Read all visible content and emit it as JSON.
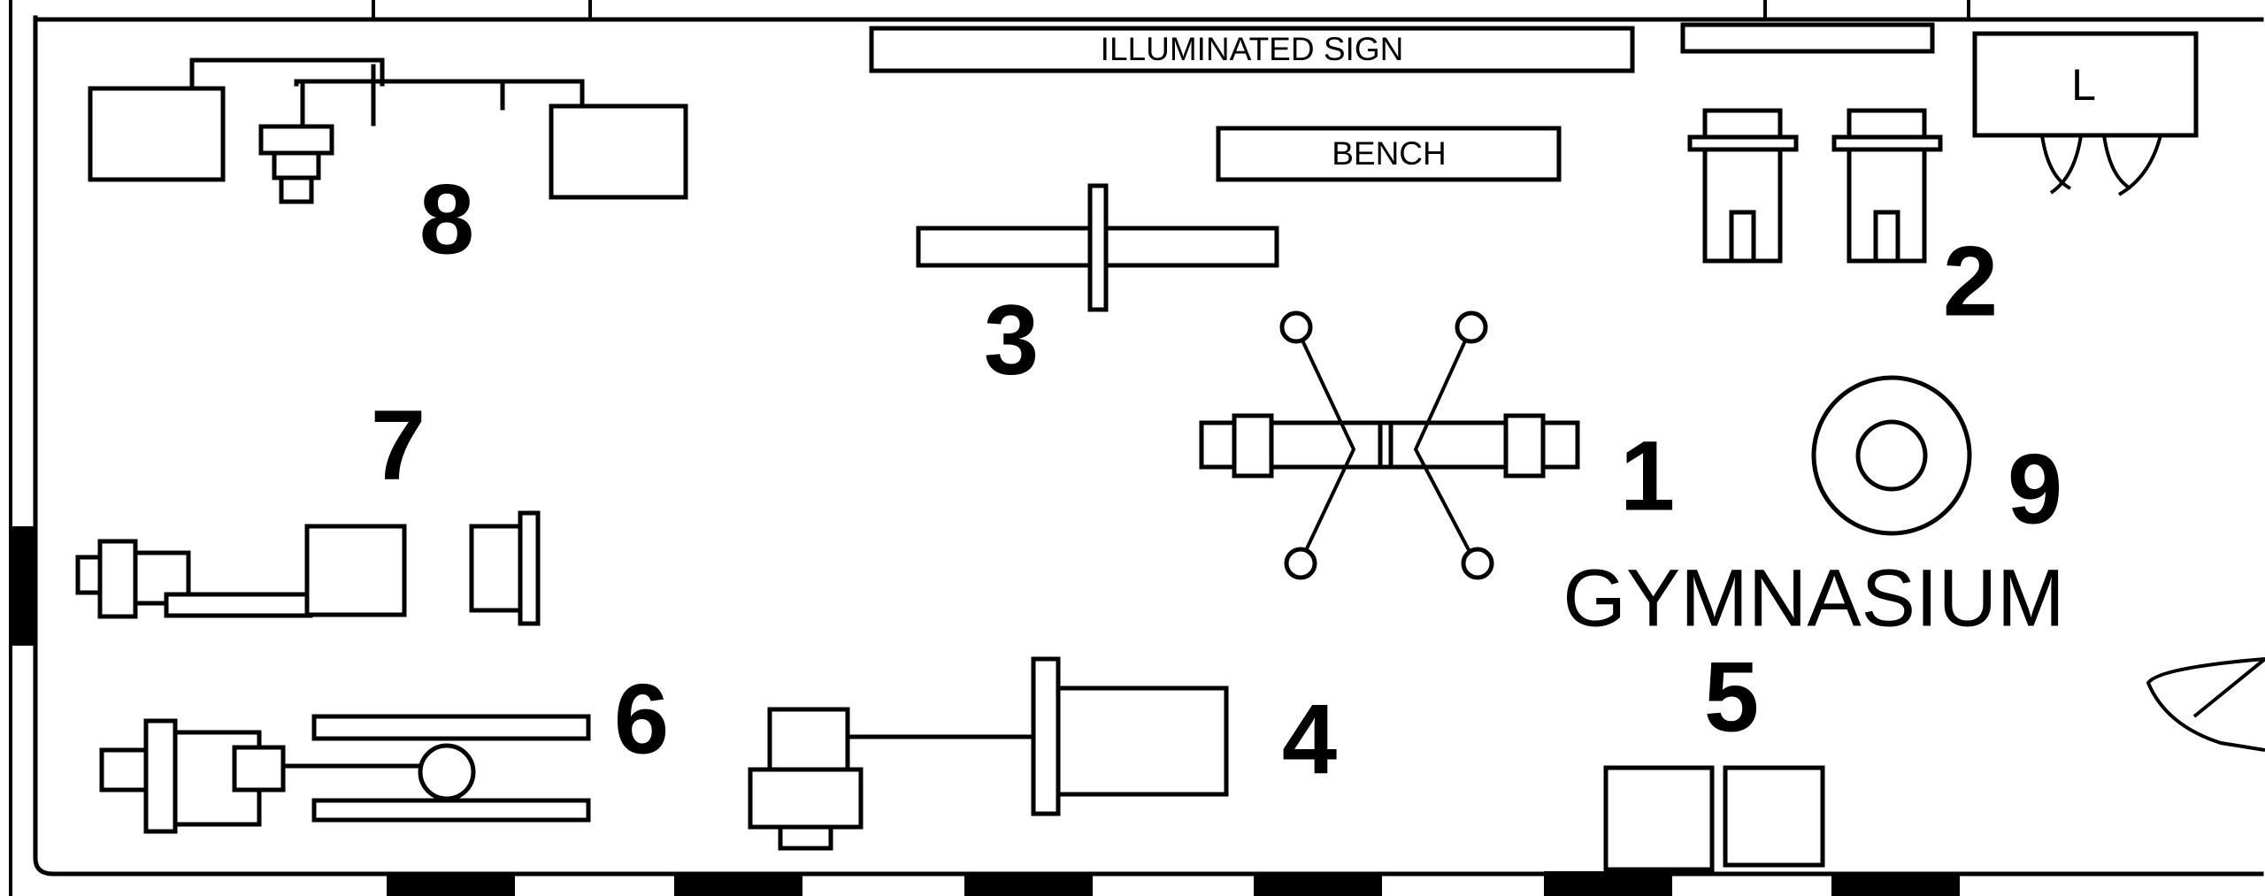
{
  "plan": {
    "room_name": "GYMNASIUM",
    "illuminated_sign": "ILLUMINATED SIGN",
    "bench": "BENCH",
    "locker_label": "L",
    "station_numbers": {
      "s1": "1",
      "s2": "2",
      "s3": "3",
      "s4": "4",
      "s5": "5",
      "s6": "6",
      "s7": "7",
      "s8": "8",
      "s9": "9"
    }
  }
}
